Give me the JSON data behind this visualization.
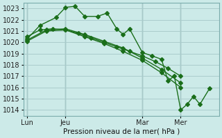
{
  "title": "Pression niveau de la mer( hPa )",
  "bg_color": "#cceae8",
  "grid_color": "#aacccc",
  "line_color": "#1a6e1a",
  "ylim": [
    1013.5,
    1023.5
  ],
  "yticks": [
    1014,
    1015,
    1016,
    1017,
    1018,
    1019,
    1020,
    1021,
    1022,
    1023
  ],
  "xlim": [
    -2,
    120
  ],
  "xtick_labels": [
    "Lun",
    "Jeu",
    "Mar",
    "Mer"
  ],
  "xtick_positions": [
    0,
    24,
    72,
    96
  ],
  "vline_positions": [
    0,
    24,
    72,
    96
  ],
  "series": {
    "s1_x": [
      0,
      8,
      16,
      24,
      32,
      40,
      48,
      56,
      64,
      72,
      80,
      88,
      96
    ],
    "s1_y": [
      1020.5,
      1021.1,
      1021.2,
      1021.1,
      1020.8,
      1020.4,
      1020.0,
      1019.6,
      1019.2,
      1018.8,
      1018.3,
      1017.7,
      1017.0
    ],
    "s2_x": [
      0,
      8,
      18,
      24,
      30,
      36,
      44,
      50,
      56,
      60,
      64,
      72,
      78,
      84,
      88,
      92,
      96,
      100,
      104,
      108,
      114
    ],
    "s2_y": [
      1020.3,
      1021.5,
      1022.2,
      1023.1,
      1023.2,
      1022.3,
      1022.3,
      1022.6,
      1021.2,
      1020.7,
      1021.2,
      1019.1,
      1018.8,
      1018.5,
      1016.6,
      1017.0,
      1014.0,
      1014.5,
      1015.2,
      1014.5,
      1015.9
    ],
    "s3_x": [
      0,
      12,
      24,
      36,
      48,
      60,
      72,
      84,
      96
    ],
    "s3_y": [
      1020.2,
      1021.1,
      1021.2,
      1020.7,
      1020.1,
      1019.5,
      1018.6,
      1017.6,
      1016.4
    ],
    "s4_x": [
      0,
      12,
      24,
      36,
      48,
      60,
      72,
      84,
      96
    ],
    "s4_y": [
      1020.1,
      1021.0,
      1021.1,
      1020.5,
      1019.9,
      1019.2,
      1018.4,
      1017.3,
      1016.0
    ]
  }
}
